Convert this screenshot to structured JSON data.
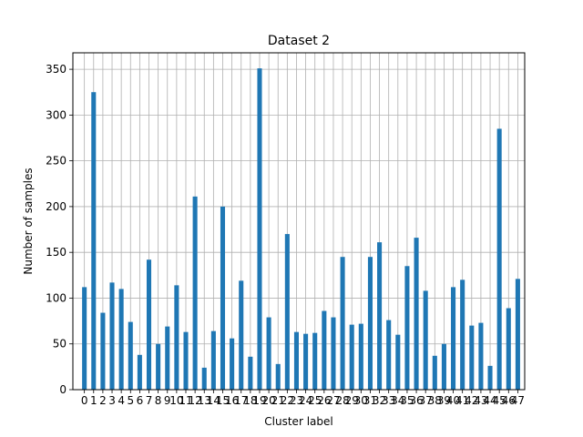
{
  "chart_data": {
    "type": "bar",
    "title": "Dataset 2",
    "xlabel": "Cluster label",
    "ylabel": "Number of samples",
    "categories": [
      "0",
      "1",
      "2",
      "3",
      "4",
      "5",
      "6",
      "7",
      "8",
      "9",
      "10",
      "11",
      "12",
      "13",
      "14",
      "15",
      "16",
      "17",
      "18",
      "19",
      "20",
      "21",
      "22",
      "23",
      "24",
      "25",
      "26",
      "27",
      "28",
      "29",
      "30",
      "31",
      "32",
      "33",
      "34",
      "35",
      "36",
      "37",
      "38",
      "39",
      "40",
      "41",
      "42",
      "43",
      "44",
      "45",
      "46",
      "47"
    ],
    "values": [
      112,
      325,
      84,
      117,
      110,
      74,
      38,
      142,
      50,
      69,
      114,
      63,
      211,
      24,
      64,
      200,
      56,
      119,
      36,
      351,
      79,
      28,
      170,
      63,
      61,
      62,
      86,
      79,
      145,
      71,
      72,
      145,
      161,
      76,
      60,
      135,
      166,
      108,
      37,
      50,
      112,
      120,
      70,
      73,
      26,
      285,
      89,
      121
    ],
    "ylim": [
      0,
      368
    ],
    "yticks": [
      0,
      50,
      100,
      150,
      200,
      250,
      300,
      350
    ],
    "grid": true,
    "bar_color": "#1f77b4"
  }
}
